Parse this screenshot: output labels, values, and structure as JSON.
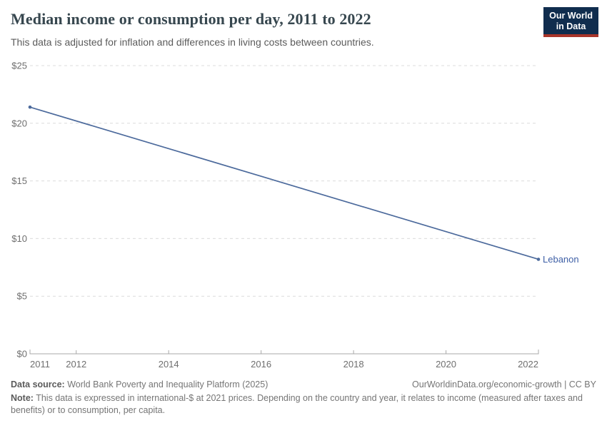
{
  "header": {
    "title": "Median income or consumption per day, 2011 to 2022",
    "subtitle": "This data is adjusted for inflation and differences in living costs between countries.",
    "logo": {
      "line1": "Our World",
      "line2": "in Data"
    }
  },
  "chart_data": {
    "type": "line",
    "title": "Median income or consumption per day, 2011 to 2022",
    "xlabel": "",
    "ylabel": "",
    "x": [
      2011,
      2022
    ],
    "series": [
      {
        "name": "Lebanon",
        "values": [
          21.4,
          8.2
        ]
      }
    ],
    "xlim": [
      2011,
      2022
    ],
    "ylim": [
      0,
      25
    ],
    "yticks": [
      0,
      5,
      10,
      15,
      20,
      25
    ],
    "ytick_prefix": "$",
    "xticks": [
      2011,
      2012,
      2014,
      2016,
      2018,
      2020,
      2022
    ],
    "grid": true,
    "legend": "end-of-line-label"
  },
  "footer": {
    "datasource_label": "Data source:",
    "datasource": "World Bank Poverty and Inequality Platform (2025)",
    "link": "OurWorldinData.org/economic-growth | CC BY",
    "note_label": "Note:",
    "note": "This data is expressed in international-$ at 2021 prices. Depending on the country and year, it relates to income (measured after taxes and benefits) or to consumption, per capita."
  },
  "colors": {
    "line": "#4c6a9c",
    "entity_label": "#3f60a6",
    "grid": "#dcdcdc",
    "axis": "#a8a8a8",
    "tick_label": "#6f6f6f",
    "title_text": "#37474f",
    "subtitle_text": "#5b5b5b",
    "footer_text": "#757575",
    "footer_bold": "#5b5b5b",
    "logo_bg": "#102d4e",
    "logo_stripe": "#a8352a"
  }
}
